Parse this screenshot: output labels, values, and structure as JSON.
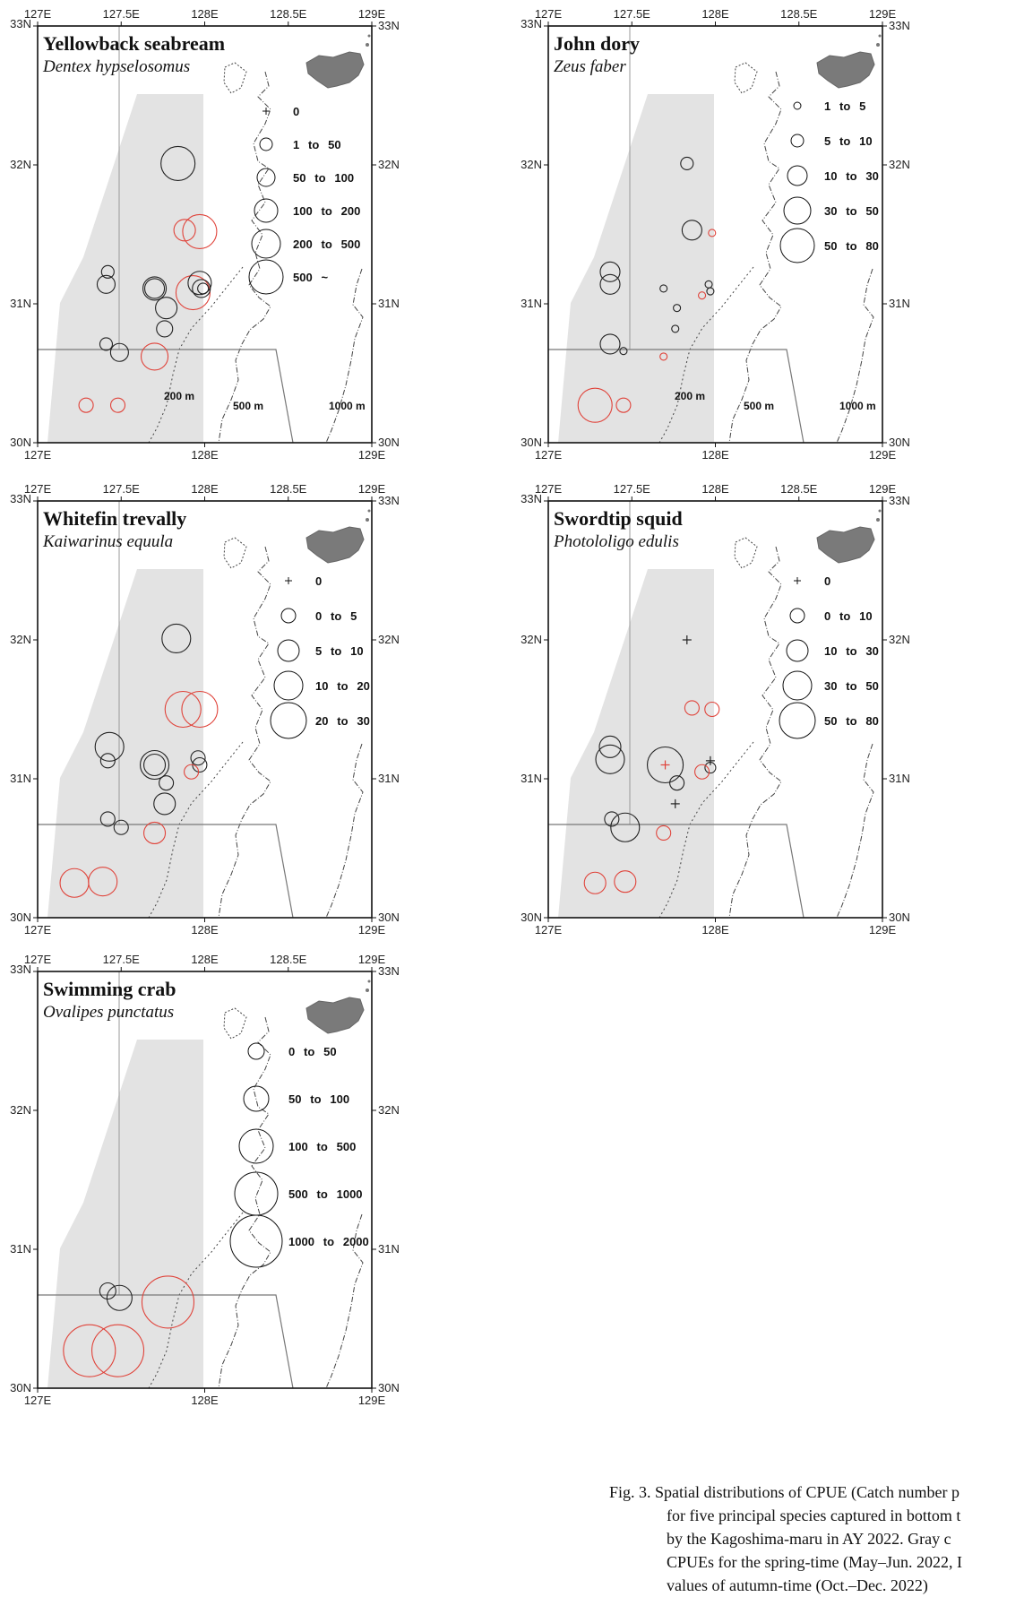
{
  "chart_data": [
    {
      "type": "scatter",
      "title": "Yellowback seabream",
      "subtitle": "Dentex hypselosomus",
      "xlim": [
        127,
        129
      ],
      "ylim": [
        30,
        33
      ],
      "xticks": [
        "127E",
        "127.5E",
        "128E",
        "128.5E",
        "129E"
      ],
      "yticks": [
        "30N",
        "31N",
        "32N",
        "33N"
      ],
      "bottom_ticks": [
        "127E",
        "128E",
        "129E"
      ],
      "depth_labels": [
        "200 m",
        "500 m",
        "1000 m"
      ],
      "legend": [
        {
          "label": "0",
          "zero": true
        },
        {
          "label": "1  to  50",
          "r": 7
        },
        {
          "label": "50  to  100",
          "r": 10
        },
        {
          "label": "100  to  200",
          "r": 13
        },
        {
          "label": "200  to  500",
          "r": 16
        },
        {
          "label": "500  ~",
          "r": 19
        }
      ],
      "points": [
        {
          "lon": 127.84,
          "lat": 32.01,
          "r": 19,
          "color": "black"
        },
        {
          "lon": 127.88,
          "lat": 31.53,
          "r": 12,
          "color": "red"
        },
        {
          "lon": 127.97,
          "lat": 31.52,
          "r": 19,
          "color": "red"
        },
        {
          "lon": 127.42,
          "lat": 31.23,
          "r": 7,
          "color": "black"
        },
        {
          "lon": 127.41,
          "lat": 31.14,
          "r": 10,
          "color": "black"
        },
        {
          "lon": 127.7,
          "lat": 31.11,
          "r": 13,
          "color": "black"
        },
        {
          "lon": 127.7,
          "lat": 31.11,
          "r": 11,
          "color": "black"
        },
        {
          "lon": 127.93,
          "lat": 31.08,
          "r": 19,
          "color": "red"
        },
        {
          "lon": 127.97,
          "lat": 31.15,
          "r": 13,
          "color": "black"
        },
        {
          "lon": 127.98,
          "lat": 31.11,
          "r": 10,
          "color": "black"
        },
        {
          "lon": 127.99,
          "lat": 31.11,
          "r": 6,
          "color": "black"
        },
        {
          "lon": 127.77,
          "lat": 30.97,
          "r": 12,
          "color": "black"
        },
        {
          "lon": 127.76,
          "lat": 30.82,
          "r": 9,
          "color": "black"
        },
        {
          "lon": 127.41,
          "lat": 30.71,
          "r": 7,
          "color": "black"
        },
        {
          "lon": 127.49,
          "lat": 30.65,
          "r": 10,
          "color": "black"
        },
        {
          "lon": 127.7,
          "lat": 30.62,
          "r": 15,
          "color": "red"
        },
        {
          "lon": 127.29,
          "lat": 30.27,
          "r": 8,
          "color": "red"
        },
        {
          "lon": 127.48,
          "lat": 30.27,
          "r": 8,
          "color": "red"
        }
      ]
    },
    {
      "type": "scatter",
      "title": "John dory",
      "subtitle": "Zeus faber",
      "xlim": [
        127,
        129
      ],
      "ylim": [
        30,
        33
      ],
      "xticks": [
        "127E",
        "127.5E",
        "128E",
        "128.5E",
        "129E"
      ],
      "yticks": [
        "30N",
        "31N",
        "32N",
        "33N"
      ],
      "bottom_ticks": [
        "127E",
        "128E",
        "129E"
      ],
      "depth_labels": [
        "200 m",
        "500 m",
        "1000 m"
      ],
      "legend": [
        {
          "label": "1  to  5",
          "r": 4
        },
        {
          "label": "5  to  10",
          "r": 7
        },
        {
          "label": "10  to  30",
          "r": 11
        },
        {
          "label": "30  to  50",
          "r": 15
        },
        {
          "label": "50  to  80",
          "r": 19
        }
      ],
      "points": [
        {
          "lon": 127.83,
          "lat": 32.01,
          "r": 7,
          "color": "black"
        },
        {
          "lon": 127.86,
          "lat": 31.53,
          "r": 11,
          "color": "black"
        },
        {
          "lon": 127.98,
          "lat": 31.51,
          "r": 4,
          "color": "red"
        },
        {
          "lon": 127.37,
          "lat": 31.23,
          "r": 11,
          "color": "black"
        },
        {
          "lon": 127.37,
          "lat": 31.14,
          "r": 11,
          "color": "black"
        },
        {
          "lon": 127.69,
          "lat": 31.11,
          "r": 4,
          "color": "black"
        },
        {
          "lon": 127.96,
          "lat": 31.14,
          "r": 4,
          "color": "black"
        },
        {
          "lon": 127.97,
          "lat": 31.09,
          "r": 4,
          "color": "black"
        },
        {
          "lon": 127.92,
          "lat": 31.06,
          "r": 4,
          "color": "red"
        },
        {
          "lon": 127.77,
          "lat": 30.97,
          "r": 4,
          "color": "black"
        },
        {
          "lon": 127.76,
          "lat": 30.82,
          "r": 4,
          "color": "black"
        },
        {
          "lon": 127.37,
          "lat": 30.71,
          "r": 11,
          "color": "black"
        },
        {
          "lon": 127.45,
          "lat": 30.66,
          "r": 4,
          "color": "black"
        },
        {
          "lon": 127.69,
          "lat": 30.62,
          "r": 4,
          "color": "red"
        },
        {
          "lon": 127.28,
          "lat": 30.27,
          "r": 19,
          "color": "red"
        },
        {
          "lon": 127.45,
          "lat": 30.27,
          "r": 8,
          "color": "red"
        }
      ]
    },
    {
      "type": "scatter",
      "title": "Whitefin trevally",
      "subtitle": "Kaiwarinus equula",
      "xlim": [
        127,
        129
      ],
      "ylim": [
        30,
        33
      ],
      "xticks": [
        "127E",
        "127.5E",
        "128E",
        "128.5E",
        "129E"
      ],
      "yticks": [
        "30N",
        "31N",
        "32N",
        "33N"
      ],
      "bottom_ticks": [
        "127E",
        "128E",
        "129E"
      ],
      "depth_labels": [],
      "legend": [
        {
          "label": "0",
          "zero": true
        },
        {
          "label": "0  to  5",
          "r": 8
        },
        {
          "label": "5  to  10",
          "r": 12
        },
        {
          "label": "10  to  20",
          "r": 16
        },
        {
          "label": "20  to  30",
          "r": 20
        }
      ],
      "points": [
        {
          "lon": 127.83,
          "lat": 32.01,
          "r": 16,
          "color": "black"
        },
        {
          "lon": 127.87,
          "lat": 31.5,
          "r": 20,
          "color": "red"
        },
        {
          "lon": 127.97,
          "lat": 31.5,
          "r": 20,
          "color": "red"
        },
        {
          "lon": 127.43,
          "lat": 31.23,
          "r": 16,
          "color": "black"
        },
        {
          "lon": 127.42,
          "lat": 31.13,
          "r": 8,
          "color": "black"
        },
        {
          "lon": 127.7,
          "lat": 31.1,
          "r": 16,
          "color": "black"
        },
        {
          "lon": 127.7,
          "lat": 31.1,
          "r": 12,
          "color": "black"
        },
        {
          "lon": 127.96,
          "lat": 31.15,
          "r": 8,
          "color": "black"
        },
        {
          "lon": 127.97,
          "lat": 31.1,
          "r": 8,
          "color": "black"
        },
        {
          "lon": 127.92,
          "lat": 31.05,
          "r": 8,
          "color": "red"
        },
        {
          "lon": 127.77,
          "lat": 30.97,
          "r": 8,
          "color": "black"
        },
        {
          "lon": 127.76,
          "lat": 30.82,
          "r": 12,
          "color": "black"
        },
        {
          "lon": 127.42,
          "lat": 30.71,
          "r": 8,
          "color": "black"
        },
        {
          "lon": 127.5,
          "lat": 30.65,
          "r": 8,
          "color": "black"
        },
        {
          "lon": 127.7,
          "lat": 30.61,
          "r": 12,
          "color": "red"
        },
        {
          "lon": 127.22,
          "lat": 30.25,
          "r": 16,
          "color": "red"
        },
        {
          "lon": 127.39,
          "lat": 30.26,
          "r": 16,
          "color": "red"
        }
      ]
    },
    {
      "type": "scatter",
      "title": "Swordtip squid",
      "subtitle": "Photololigo edulis",
      "xlim": [
        127,
        129
      ],
      "ylim": [
        30,
        33
      ],
      "xticks": [
        "127E",
        "127.5E",
        "128E",
        "128.5E",
        "129E"
      ],
      "yticks": [
        "30N",
        "31N",
        "32N",
        "33N"
      ],
      "bottom_ticks": [
        "127E",
        "128E",
        "129E"
      ],
      "depth_labels": [],
      "legend": [
        {
          "label": "0",
          "zero": true
        },
        {
          "label": "0  to  10",
          "r": 8
        },
        {
          "label": "10  to  30",
          "r": 12
        },
        {
          "label": "30  to  50",
          "r": 16
        },
        {
          "label": "50  to  80",
          "r": 20
        }
      ],
      "points": [
        {
          "lon": 127.83,
          "lat": 32.0,
          "zero": true,
          "color": "black"
        },
        {
          "lon": 127.86,
          "lat": 31.51,
          "r": 8,
          "color": "red"
        },
        {
          "lon": 127.98,
          "lat": 31.5,
          "r": 8,
          "color": "red"
        },
        {
          "lon": 127.37,
          "lat": 31.23,
          "r": 12,
          "color": "black"
        },
        {
          "lon": 127.37,
          "lat": 31.14,
          "r": 16,
          "color": "black"
        },
        {
          "lon": 127.7,
          "lat": 31.1,
          "r": 20,
          "color": "black"
        },
        {
          "lon": 127.7,
          "lat": 31.1,
          "zero": true,
          "color": "red"
        },
        {
          "lon": 127.97,
          "lat": 31.13,
          "zero": true,
          "color": "black"
        },
        {
          "lon": 127.97,
          "lat": 31.08,
          "r": 6,
          "color": "black"
        },
        {
          "lon": 127.92,
          "lat": 31.05,
          "r": 8,
          "color": "red"
        },
        {
          "lon": 127.77,
          "lat": 30.97,
          "r": 8,
          "color": "black"
        },
        {
          "lon": 127.76,
          "lat": 30.82,
          "zero": true,
          "color": "black"
        },
        {
          "lon": 127.38,
          "lat": 30.71,
          "r": 8,
          "color": "black"
        },
        {
          "lon": 127.46,
          "lat": 30.65,
          "r": 16,
          "color": "black"
        },
        {
          "lon": 127.69,
          "lat": 30.61,
          "r": 8,
          "color": "red"
        },
        {
          "lon": 127.28,
          "lat": 30.25,
          "r": 12,
          "color": "red"
        },
        {
          "lon": 127.46,
          "lat": 30.26,
          "r": 12,
          "color": "red"
        }
      ]
    },
    {
      "type": "scatter",
      "title": "Swimming crab",
      "subtitle": "Ovalipes punctatus",
      "xlim": [
        127,
        129
      ],
      "ylim": [
        30,
        33
      ],
      "xticks": [
        "127E",
        "127.5E",
        "128E",
        "128.5E",
        "129E"
      ],
      "yticks": [
        "30N",
        "31N",
        "32N",
        "33N"
      ],
      "bottom_ticks": [
        "127E",
        "128E",
        "129E"
      ],
      "depth_labels": [],
      "legend": [
        {
          "label": "0  to  50",
          "r": 9
        },
        {
          "label": "50  to  100",
          "r": 14
        },
        {
          "label": "100  to  500",
          "r": 19
        },
        {
          "label": "500  to  1000",
          "r": 24
        },
        {
          "label": "1000  to  2000",
          "r": 29
        }
      ],
      "points": [
        {
          "lon": 127.42,
          "lat": 30.7,
          "r": 9,
          "color": "black"
        },
        {
          "lon": 127.49,
          "lat": 30.65,
          "r": 14,
          "color": "black"
        },
        {
          "lon": 127.78,
          "lat": 30.62,
          "r": 29,
          "color": "red"
        },
        {
          "lon": 127.31,
          "lat": 30.27,
          "r": 29,
          "color": "red"
        },
        {
          "lon": 127.48,
          "lat": 30.27,
          "r": 29,
          "color": "red"
        }
      ]
    }
  ],
  "caption": {
    "lines": [
      "Fig. 3. Spatial distributions of CPUE (Catch number p",
      "for five principal species captured in bottom t",
      "by the Kagoshima-maru in AY 2022. Gray c",
      "CPUEs for the spring-time (May–Jun. 2022, I",
      "values of autumn-time (Oct.–Dec. 2022)"
    ]
  }
}
